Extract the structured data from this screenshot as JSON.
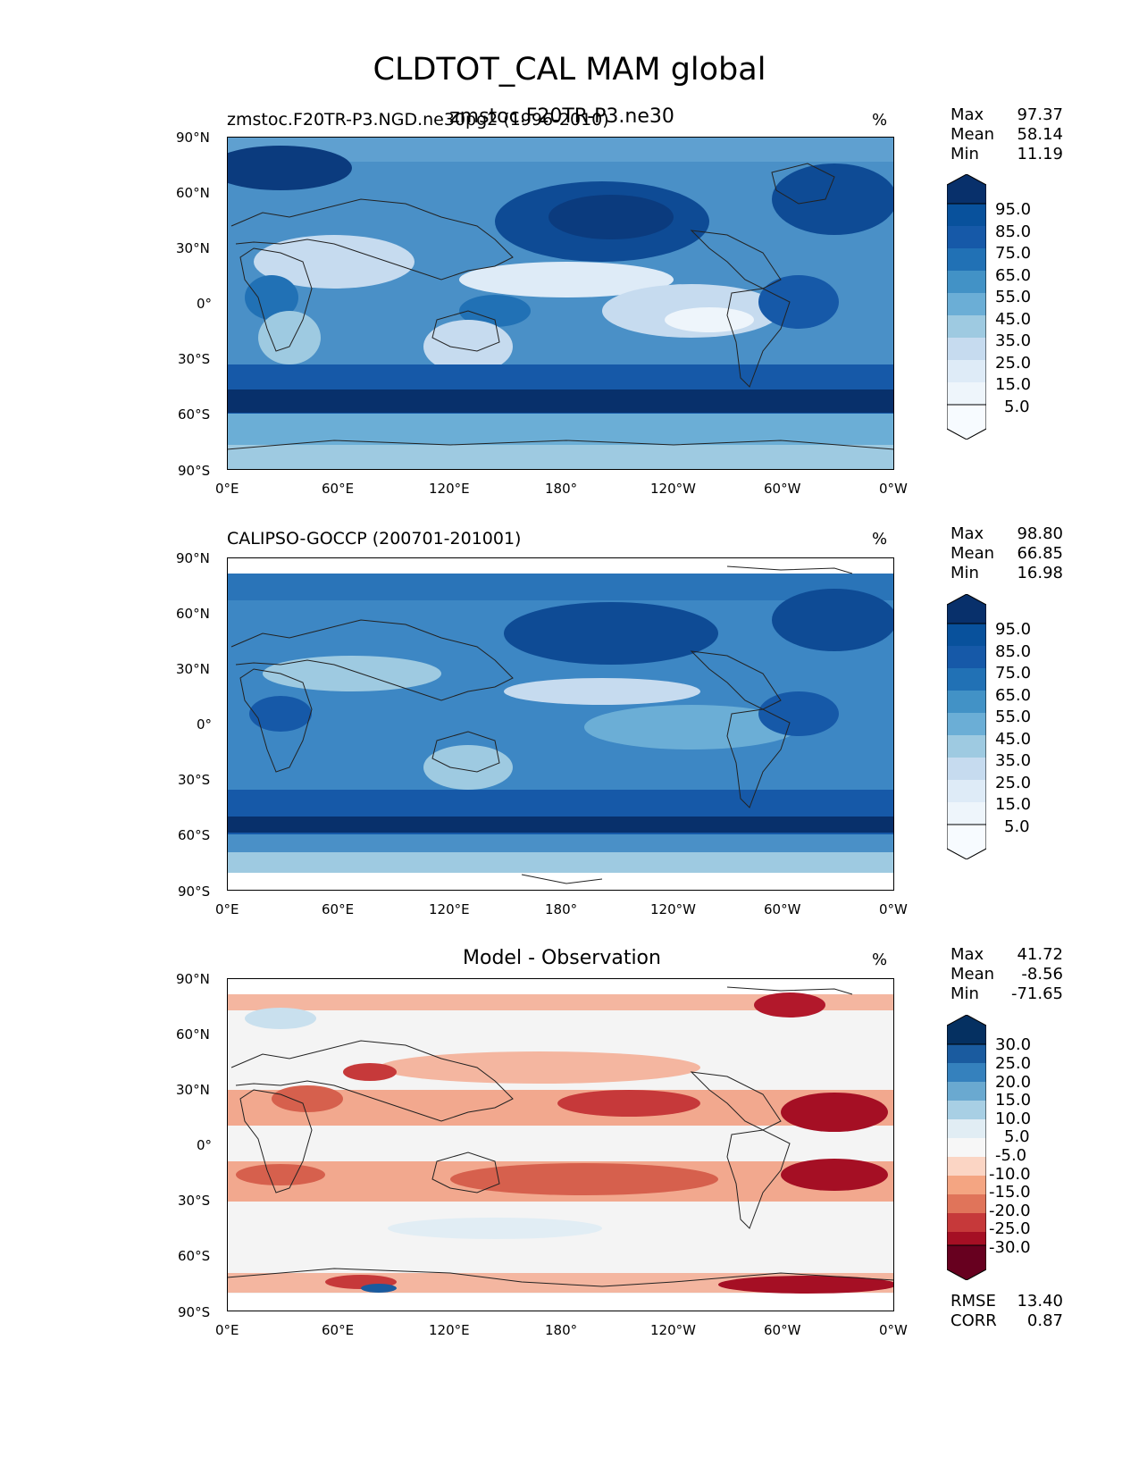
{
  "figure_title": "CLDTOT_CAL MAM global",
  "axis_ticks": {
    "lat": [
      "90°N",
      "60°N",
      "30°N",
      "0°",
      "30°S",
      "60°S",
      "90°S"
    ],
    "lon": [
      "0°E",
      "60°E",
      "120°E",
      "180°",
      "120°W",
      "60°W",
      "0°W"
    ]
  },
  "panels": [
    {
      "left_title": "zmstoc.F20TR-P3.NGD.ne30pg2 (1996-2010)",
      "center_title": "zmstoc.F20TR-P3.ne30",
      "unit": "%",
      "stats": [
        {
          "label": "Max",
          "value": "97.37"
        },
        {
          "label": "Mean",
          "value": "58.14"
        },
        {
          "label": "Min",
          "value": "11.19"
        }
      ],
      "colorbar": {
        "colors": [
          "#f7fbff",
          "#deebf7",
          "#c6dbef",
          "#9ecae1",
          "#6baed6",
          "#4292c6",
          "#2171b5",
          "#1659a8",
          "#08519c",
          "#08306b"
        ],
        "labels": [
          "95.0",
          "85.0",
          "75.0",
          "65.0",
          "55.0",
          "45.0",
          "35.0",
          "25.0",
          "15.0",
          "5.0"
        ]
      }
    },
    {
      "left_title": "CALIPSO-GOCCP (200701-201001)",
      "center_title": "",
      "unit": "%",
      "stats": [
        {
          "label": "Max",
          "value": "98.80"
        },
        {
          "label": "Mean",
          "value": "66.85"
        },
        {
          "label": "Min",
          "value": "16.98"
        }
      ],
      "colorbar": {
        "colors": [
          "#f7fbff",
          "#deebf7",
          "#c6dbef",
          "#9ecae1",
          "#6baed6",
          "#4292c6",
          "#2171b5",
          "#1659a8",
          "#08519c",
          "#08306b"
        ],
        "labels": [
          "95.0",
          "85.0",
          "75.0",
          "65.0",
          "55.0",
          "45.0",
          "35.0",
          "25.0",
          "15.0",
          "5.0"
        ]
      }
    },
    {
      "left_title": "",
      "center_title": "Model - Observation",
      "unit": "%",
      "stats": [
        {
          "label": "Max",
          "value": "41.72"
        },
        {
          "label": "Mean",
          "value": "-8.56"
        },
        {
          "label": "Min",
          "value": "-71.65"
        }
      ],
      "colorbar": {
        "colors": [
          "#67001f",
          "#a50f24",
          "#c6393a",
          "#e0745a",
          "#f4a582",
          "#fbd5c4",
          "#f7f7f7",
          "#e1edf4",
          "#a8cfe4",
          "#6aa9d0",
          "#3581bd",
          "#1a5b9f",
          "#053061"
        ],
        "labels": [
          "30.0",
          "25.0",
          "20.0",
          "15.0",
          "10.0",
          "5.0",
          "-5.0",
          "-10.0",
          "-15.0",
          "-20.0",
          "-25.0",
          "-30.0"
        ]
      },
      "extra_stats": [
        {
          "label": "RMSE",
          "value": "13.40"
        },
        {
          "label": "CORR",
          "value": "0.87"
        }
      ]
    }
  ]
}
